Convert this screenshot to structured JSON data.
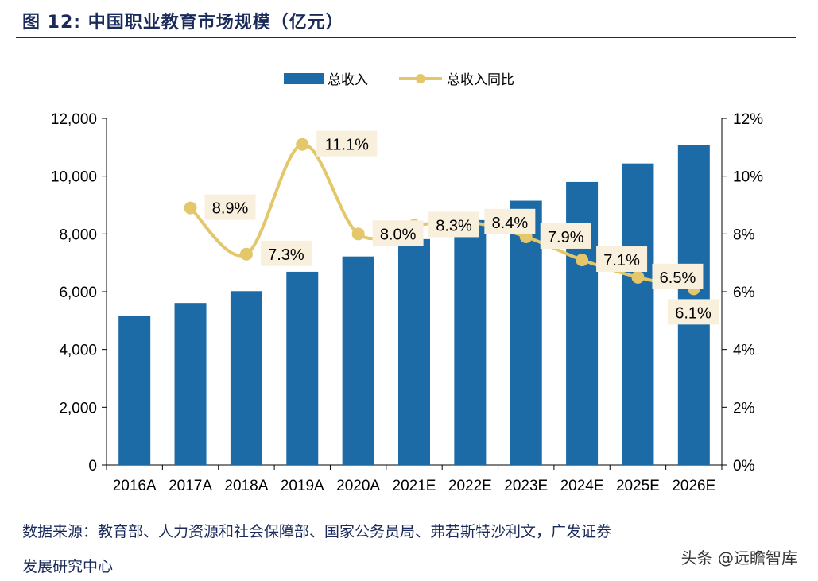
{
  "title": "图 12:  中国职业教育市场规模（亿元）",
  "source_line1": "数据来源：教育部、人力资源和社会保障部、国家公务员局、弗若斯特沙利文，广发证券",
  "source_line2": "发展研究中心",
  "watermark": "头条 @远瞻智库",
  "colors": {
    "bar": "#1c6aa6",
    "line": "#e3c76a",
    "label_bg": "#f8f0dc"
  },
  "chart_data": {
    "type": "bar+line",
    "categories": [
      "2016A",
      "2017A",
      "2018A",
      "2019A",
      "2020A",
      "2021E",
      "2022E",
      "2023E",
      "2024E",
      "2025E",
      "2026E"
    ],
    "series": [
      {
        "name": "总收入",
        "type": "bar",
        "axis": "left",
        "values": [
          5150,
          5610,
          6020,
          6690,
          7220,
          7820,
          8480,
          9150,
          9800,
          10440,
          11080
        ]
      },
      {
        "name": "总收入同比",
        "type": "line",
        "axis": "right",
        "values": [
          null,
          8.9,
          7.3,
          11.1,
          8.0,
          8.3,
          8.4,
          7.9,
          7.1,
          6.5,
          6.1
        ]
      }
    ],
    "data_labels": [
      null,
      "8.9%",
      "7.3%",
      "11.1%",
      "8.0%",
      "8.3%",
      "8.4%",
      "7.9%",
      "7.1%",
      "6.5%",
      "6.1%"
    ],
    "ylim_left": [
      0,
      12000
    ],
    "yticks_left": [
      "0",
      "2,000",
      "4,000",
      "6,000",
      "8,000",
      "10,000",
      "12,000"
    ],
    "ylim_right": [
      0,
      12
    ],
    "yticks_right": [
      "0%",
      "2%",
      "4%",
      "6%",
      "8%",
      "10%",
      "12%"
    ],
    "legend": "top-center",
    "grid": false
  }
}
